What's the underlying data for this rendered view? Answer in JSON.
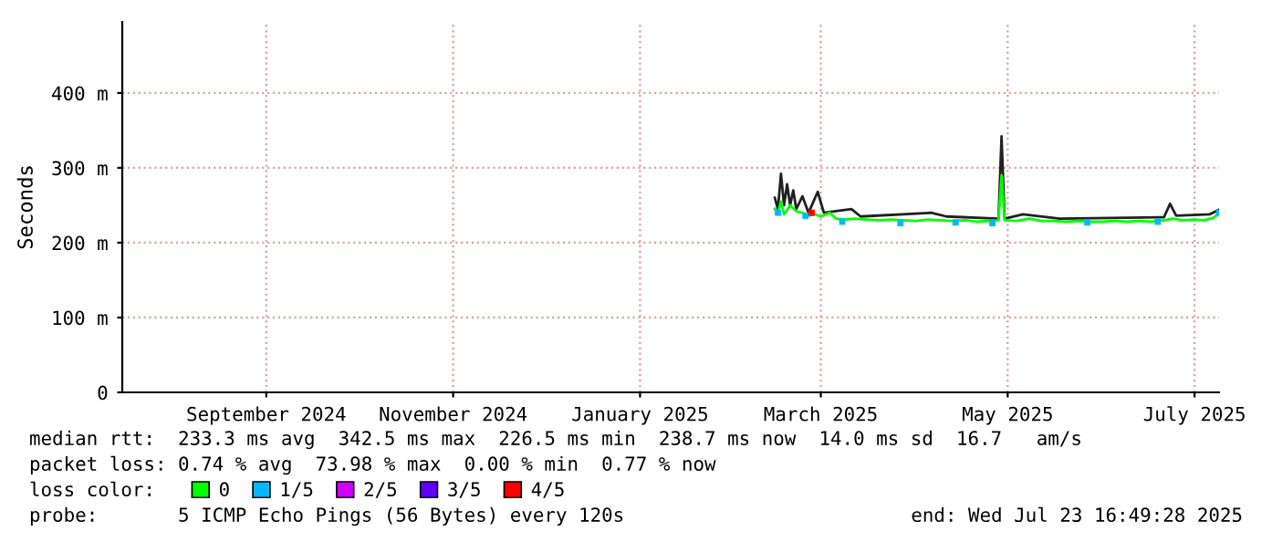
{
  "chart_data": {
    "type": "line",
    "ylabel": "Seconds",
    "legend_title": "loss color:",
    "legend": "bottom",
    "grid": true,
    "marker": "none",
    "xlim": [
      "2024-07-30",
      "2025-07-23"
    ],
    "xticks": [
      {
        "value": "2024-09-15",
        "label": "September 2024"
      },
      {
        "value": "2024-11-15",
        "label": "November 2024"
      },
      {
        "value": "2025-01-15",
        "label": "January 2025"
      },
      {
        "value": "2025-03-15",
        "label": "March 2025"
      },
      {
        "value": "2025-05-15",
        "label": "May 2025"
      },
      {
        "value": "2025-07-15",
        "label": "July 2025"
      }
    ],
    "ylim": [
      0,
      495
    ],
    "yticks": [
      0,
      {
        "value": 100,
        "label": "100 m"
      },
      {
        "value": 200,
        "label": "200 m"
      },
      {
        "value": 300,
        "label": "300 m"
      },
      {
        "value": 400,
        "label": "400 m"
      }
    ],
    "series": [
      {
        "color": "#202020",
        "x": [
          "2025-02-28",
          "2025-03-01",
          "2025-03-02",
          "2025-03-03",
          "2025-03-04",
          "2025-03-05",
          "2025-03-06",
          "2025-03-07",
          "2025-03-09",
          "2025-03-11",
          "2025-03-14",
          "2025-03-16",
          "2025-03-25",
          "2025-03-28",
          "2025-04-20",
          "2025-04-25",
          "2025-05-12",
          "2025-05-13",
          "2025-05-14",
          "2025-05-20",
          "2025-06-01",
          "2025-07-05",
          "2025-07-07",
          "2025-07-09",
          "2025-07-20",
          "2025-07-23"
        ],
        "values": [
          260,
          245,
          292,
          250,
          278,
          250,
          270,
          245,
          262,
          240,
          268,
          240,
          245,
          235,
          240,
          235,
          232,
          342,
          232,
          238,
          232,
          234,
          252,
          236,
          238,
          244
        ]
      },
      {
        "name": "0",
        "color": "#00ff00",
        "x": [
          "2025-02-28",
          "2025-03-01",
          "2025-03-02",
          "2025-03-03",
          "2025-03-05",
          "2025-03-07",
          "2025-03-09",
          "2025-03-11",
          "2025-03-13",
          "2025-03-15",
          "2025-03-18",
          "2025-03-20",
          "2025-03-23",
          "2025-03-26",
          "2025-03-30",
          "2025-04-03",
          "2025-04-07",
          "2025-04-11",
          "2025-04-15",
          "2025-04-19",
          "2025-04-23",
          "2025-04-27",
          "2025-05-01",
          "2025-05-05",
          "2025-05-09",
          "2025-05-12",
          "2025-05-13",
          "2025-05-14",
          "2025-05-18",
          "2025-05-22",
          "2025-05-26",
          "2025-05-30",
          "2025-06-03",
          "2025-06-07",
          "2025-06-11",
          "2025-06-15",
          "2025-06-19",
          "2025-06-23",
          "2025-06-27",
          "2025-07-01",
          "2025-07-05",
          "2025-07-08",
          "2025-07-11",
          "2025-07-15",
          "2025-07-18",
          "2025-07-21",
          "2025-07-23"
        ],
        "values": [
          245,
          240,
          255,
          238,
          250,
          242,
          240,
          236,
          238,
          235,
          240,
          232,
          231,
          232,
          231,
          230,
          231,
          230,
          229,
          231,
          230,
          229,
          230,
          228,
          229,
          230,
          290,
          230,
          229,
          232,
          229,
          229,
          228,
          229,
          228,
          228,
          229,
          228,
          229,
          228,
          230,
          232,
          230,
          231,
          230,
          233,
          239
        ]
      },
      {
        "name": "1/5",
        "type": "scatter",
        "marker": "square",
        "color": "#00b8ff",
        "x": [
          "2025-03-01",
          "2025-03-10",
          "2025-03-22",
          "2025-04-10",
          "2025-04-28",
          "2025-05-10",
          "2025-06-10",
          "2025-07-03",
          "2025-07-23"
        ],
        "values": [
          240,
          236,
          228,
          226,
          227,
          226,
          227,
          228,
          240
        ]
      },
      {
        "name": "2/5",
        "type": "scatter",
        "marker": "square",
        "color": "#d000ff"
      },
      {
        "name": "3/5",
        "type": "scatter",
        "marker": "square",
        "color": "#6000ff"
      },
      {
        "name": "4/5",
        "type": "scatter",
        "marker": "square",
        "color": "#ff0000",
        "x": [
          "2025-03-12"
        ],
        "values": [
          240
        ]
      }
    ],
    "annotations": [
      "median rtt:  233.3 ms avg  342.5 ms max  226.5 ms min  238.7 ms now  14.0 ms sd  16.7   am/s",
      "packet loss: 0.74 % avg  73.98 % max  0.00 % min  0.77 % now",
      "probe:       5 ICMP Echo Pings (56 Bytes) every 120s",
      "end: Wed Jul 23 16:49:28 2025"
    ]
  }
}
